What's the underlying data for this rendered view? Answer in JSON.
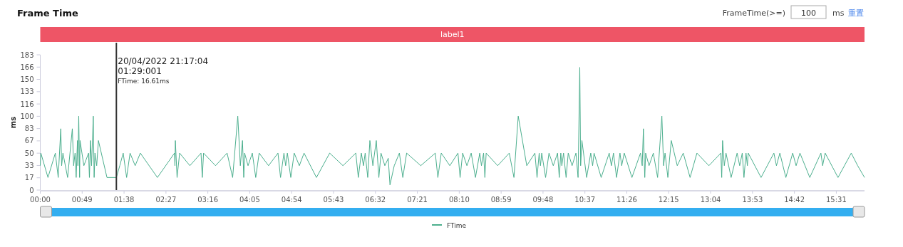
{
  "chart_data": {
    "type": "line",
    "title": "Frame Time",
    "xlabel": null,
    "ylabel": "ms",
    "xlim": [
      0,
      964
    ],
    "ylim": [
      0,
      183
    ],
    "xticks": [
      {
        "value": 0,
        "label": "00:00"
      },
      {
        "value": 49,
        "label": "00:49"
      },
      {
        "value": 98,
        "label": "01:38"
      },
      {
        "value": 147,
        "label": "02:27"
      },
      {
        "value": 196,
        "label": "03:16"
      },
      {
        "value": 245,
        "label": "04:05"
      },
      {
        "value": 294,
        "label": "04:54"
      },
      {
        "value": 343,
        "label": "05:43"
      },
      {
        "value": 392,
        "label": "06:32"
      },
      {
        "value": 441,
        "label": "07:21"
      },
      {
        "value": 490,
        "label": "08:10"
      },
      {
        "value": 539,
        "label": "08:59"
      },
      {
        "value": 588,
        "label": "09:48"
      },
      {
        "value": 637,
        "label": "10:37"
      },
      {
        "value": 686,
        "label": "11:26"
      },
      {
        "value": 735,
        "label": "12:15"
      },
      {
        "value": 784,
        "label": "13:04"
      },
      {
        "value": 833,
        "label": "13:53"
      },
      {
        "value": 882,
        "label": "14:42"
      },
      {
        "value": 931,
        "label": "15:31"
      }
    ],
    "yticks": [
      {
        "value": 0,
        "label": "0"
      },
      {
        "value": 16.64,
        "label": "17"
      },
      {
        "value": 33.27,
        "label": "33"
      },
      {
        "value": 49.91,
        "label": "50"
      },
      {
        "value": 66.55,
        "label": "67"
      },
      {
        "value": 83.18,
        "label": "83"
      },
      {
        "value": 99.82,
        "label": "100"
      },
      {
        "value": 116.45,
        "label": "116"
      },
      {
        "value": 133.09,
        "label": "133"
      },
      {
        "value": 149.73,
        "label": "150"
      },
      {
        "value": 166.36,
        "label": "166"
      },
      {
        "value": 183,
        "label": "183"
      }
    ],
    "grid": false,
    "legend": "bottom",
    "marker": "none",
    "line_style": "solid",
    "ref_lines": [
      {
        "axis": "x",
        "value": 89,
        "color": "#333333"
      }
    ],
    "annotations": [
      "20/04/2022 21:17:04",
      "01:29:001",
      "FTime: 16.61ms",
      "FrameTime(>=)",
      "100",
      "ms",
      "重置",
      "label1"
    ],
    "series": [
      {
        "name": "FTime",
        "color": "#4caf8e",
        "x": [
          0,
          0.7,
          9,
          17.6,
          21,
          24,
          25,
          26.5,
          32,
          37.5,
          39,
          40.7,
          42,
          43.5,
          44,
          45,
          46,
          46.5,
          51,
          56.5,
          57.5,
          58.7,
          60,
          62,
          63,
          64,
          66,
          68,
          78,
          89,
          93,
          97,
          101,
          105,
          111,
          117,
          137,
          157,
          157.5,
          158,
          160,
          163,
          175,
          188,
          189.5,
          191,
          205,
          218.5,
          225,
          231,
          234,
          236.5,
          238,
          239,
          243,
          248,
          252,
          256,
          267,
          278,
          281,
          285,
          287,
          289,
          293,
          297,
          303,
          308.5,
          323,
          338.5,
          354,
          369,
          372,
          375.5,
          378,
          380,
          383,
          385.5,
          389,
          393,
          396,
          398.5,
          403,
          407,
          409,
          414,
          420,
          424,
          428.5,
          445,
          462,
          465,
          469,
          479,
          488.5,
          491,
          494,
          499,
          504,
          509,
          514,
          516,
          518.5,
          520,
          521.5,
          535,
          548.5,
          554,
          559,
          569,
          578.5,
          581,
          583.5,
          585,
          586.5,
          591,
          595,
          600,
          605,
          607,
          608.8,
          610,
          612,
          615,
          617.5,
          622,
          626.5,
          629,
          631,
          632,
          633.5,
          639,
          643.8,
          646,
          647.7,
          656,
          665.4,
          668,
          670.4,
          674,
          678,
          680,
          683,
          692,
          702,
          704,
          705.4,
          707,
          708,
          712,
          717,
          722,
          727,
          729,
          730.7,
          734,
          738,
          745,
          752,
          760,
          768,
          782,
          796,
          797,
          798,
          800,
          802,
          808,
          815,
          818,
          821,
          823,
          825.4,
          827,
          828,
          843,
          858,
          861,
          865,
          872,
          880,
          884,
          888.5,
          900,
          913,
          915,
          918,
          933,
          948.5,
          956,
          964
        ],
        "values": [
          33,
          50,
          17,
          50,
          17,
          83,
          33,
          50,
          17,
          83,
          33,
          50,
          17,
          67,
          33,
          100,
          17,
          67,
          33,
          50,
          17,
          67,
          33,
          100,
          17,
          50,
          33,
          67,
          17,
          17,
          33,
          50,
          17,
          50,
          33,
          50,
          17,
          50,
          33,
          67,
          17,
          50,
          33,
          50,
          17,
          50,
          33,
          50,
          17,
          100,
          33,
          67,
          17,
          50,
          33,
          50,
          17,
          50,
          33,
          50,
          17,
          50,
          33,
          50,
          17,
          50,
          33,
          50,
          17,
          50,
          33,
          50,
          17,
          50,
          33,
          50,
          17,
          67,
          33,
          67,
          17,
          50,
          33,
          43,
          7,
          33,
          50,
          17,
          50,
          33,
          50,
          17,
          50,
          33,
          50,
          17,
          50,
          33,
          50,
          17,
          50,
          33,
          50,
          17,
          50,
          33,
          50,
          17,
          100,
          33,
          50,
          17,
          50,
          33,
          50,
          17,
          50,
          33,
          50,
          17,
          50,
          33,
          50,
          17,
          50,
          33,
          50,
          17,
          166,
          33,
          67,
          17,
          50,
          33,
          50,
          17,
          50,
          33,
          50,
          17,
          50,
          33,
          50,
          17,
          50,
          33,
          83,
          17,
          50,
          33,
          50,
          17,
          100,
          33,
          50,
          17,
          67,
          33,
          50,
          17,
          50,
          33,
          50,
          17,
          67,
          33,
          50,
          17,
          50,
          33,
          50,
          17,
          50,
          33,
          50,
          17,
          50,
          33,
          50,
          17,
          50,
          33,
          50,
          17,
          50,
          33,
          50,
          17,
          50,
          33,
          17
        ]
      }
    ]
  }
}
